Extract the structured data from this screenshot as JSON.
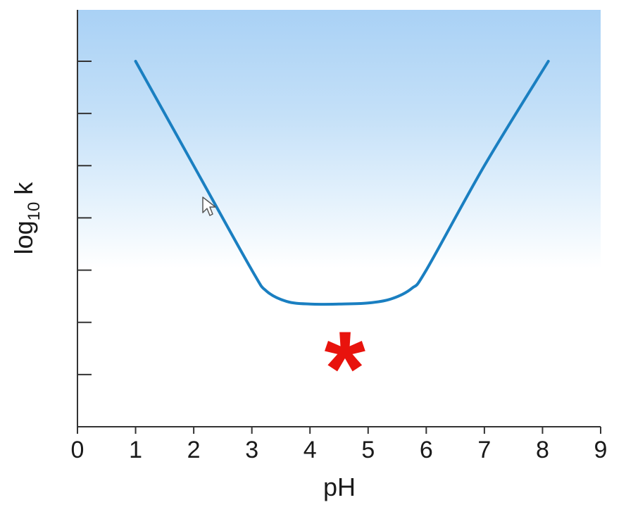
{
  "chart_data": {
    "type": "line",
    "xlabel": "pH",
    "ylabel": {
      "base": "log",
      "subscript": "10",
      "suffix": " k"
    },
    "xlim": [
      0,
      9
    ],
    "ylim": [
      0,
      7
    ],
    "x_ticks": [
      "0",
      "1",
      "2",
      "3",
      "4",
      "5",
      "6",
      "7",
      "8",
      "9"
    ],
    "y_tick_count": 7,
    "y_tick_labels_shown": false,
    "grid": false,
    "background": "gradient light-blue (top) to white",
    "series": [
      {
        "color": "#1a7fc1",
        "x": [
          1.0,
          2.0,
          3.0,
          3.25,
          3.6,
          4.0,
          4.5,
          5.0,
          5.4,
          5.75,
          6.0,
          7.0,
          8.1
        ],
        "y": [
          7.0,
          5.0,
          3.0,
          2.6,
          2.4,
          2.35,
          2.35,
          2.37,
          2.45,
          2.65,
          3.0,
          5.0,
          7.0
        ]
      }
    ],
    "annotations": [
      {
        "text": "*",
        "color": "#e8130d",
        "x": 4.6,
        "y": 1.5
      }
    ]
  },
  "cursor": "arrow-pointer"
}
